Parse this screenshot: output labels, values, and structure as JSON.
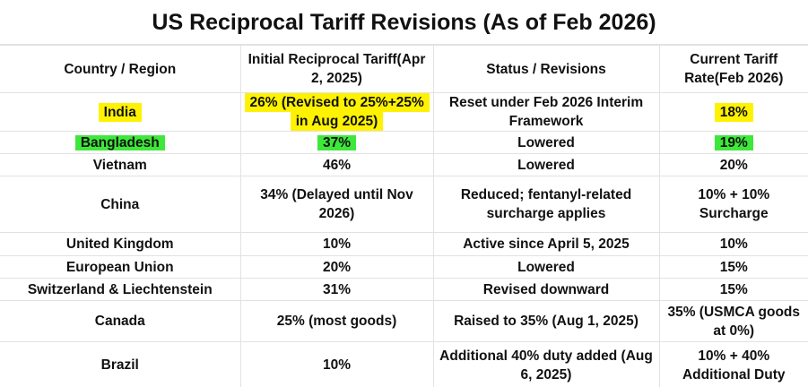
{
  "title": "US Reciprocal Tariff Revisions (As of Feb 2026)",
  "table": {
    "header": [
      "Country / Region",
      "Initial Reciprocal Tariff(Apr 2, 2025)",
      "Status / Revisions",
      "Current Tariff Rate(Feb 2026)"
    ],
    "rows": [
      [
        "India",
        "26% (Revised to 25%+25% in Aug 2025)",
        "Reset under Feb 2026 Interim Framework",
        "18%"
      ],
      [
        "Bangladesh",
        "37%",
        "Lowered",
        "19%"
      ],
      [
        "Vietnam",
        "46%",
        "Lowered",
        "20%"
      ],
      [
        "China",
        "34% (Delayed until Nov 2026)",
        "Reduced; fentanyl-related surcharge applies",
        "10% + 10% Surcharge"
      ],
      [
        "United Kingdom",
        "10%",
        "Active since April 5, 2025",
        "10%"
      ],
      [
        "European Union",
        "20%",
        "Lowered",
        "15%"
      ],
      [
        "Switzerland & Liechtenstein",
        "31%",
        "Revised downward",
        "15%"
      ],
      [
        "Canada",
        "25% (most goods)",
        "Raised to 35% (Aug 1, 2025)",
        "35% (USMCA goods at 0%)"
      ],
      [
        "Brazil",
        "10%",
        "Additional 40% duty added (Aug 6, 2025)",
        "10% + 40% Additional Duty"
      ]
    ]
  }
}
